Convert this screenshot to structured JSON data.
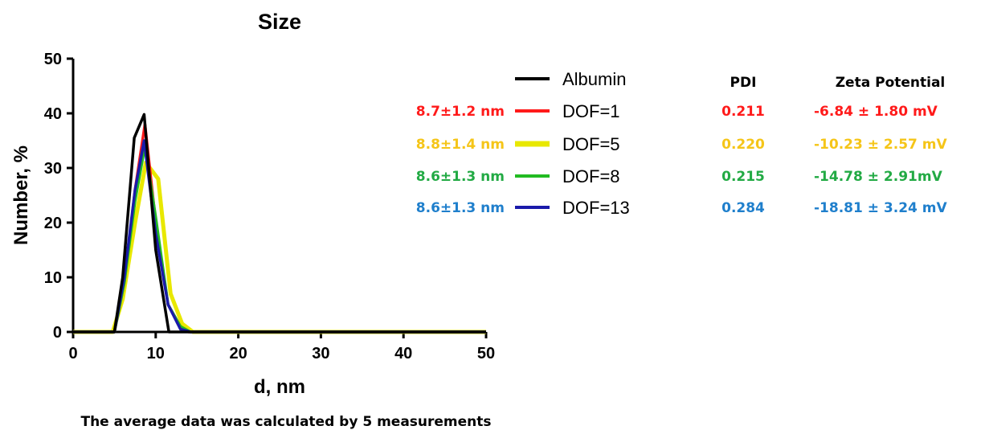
{
  "chart_data": {
    "type": "line",
    "title": "Size",
    "xlabel": "d, nm",
    "ylabel": "Number, %",
    "xlim": [
      0,
      50
    ],
    "ylim": [
      0,
      50
    ],
    "xticks": [
      "0",
      "10",
      "20",
      "30",
      "40",
      "50"
    ],
    "yticks": [
      "0",
      "10",
      "20",
      "30",
      "40",
      "50"
    ],
    "grid": false,
    "legend_position": "right",
    "series": [
      {
        "name": "Albumin",
        "color": "#000000",
        "size_label": "",
        "pdi": "",
        "zeta": "",
        "x": [
          0,
          5,
          6,
          7.4,
          8.6,
          10,
          11.6,
          12,
          50
        ],
        "y": [
          0,
          0,
          10,
          35.5,
          39.8,
          15,
          0,
          0,
          0
        ]
      },
      {
        "name": "DOF=1",
        "color": "#ff1a1a",
        "size_label": "8.7±1.2 nm",
        "pdi": "0.211",
        "zeta": "-6.84 ± 1.80 mV",
        "x": [
          0,
          5,
          6.2,
          7.5,
          8.7,
          10,
          11.5,
          13,
          14,
          15.5,
          50
        ],
        "y": [
          0,
          0,
          9,
          26,
          38,
          20,
          5,
          1,
          0,
          0,
          0
        ]
      },
      {
        "name": "DOF=5",
        "color": "#e8e800",
        "size_label": "8.8±1.4 nm",
        "pdi": "0.220",
        "zeta": "-10.23 ± 2.57 mV",
        "x": [
          0,
          4.8,
          6,
          7.5,
          8.8,
          10.3,
          11.8,
          13.2,
          14.5,
          16,
          50
        ],
        "y": [
          0,
          0,
          6,
          20,
          31,
          28,
          7,
          1.5,
          0,
          0,
          0
        ]
      },
      {
        "name": "DOF=8",
        "color": "#22bb22",
        "size_label": "8.6±1.3 nm",
        "pdi": "0.215",
        "zeta": "-14.78 ± 2.91mV",
        "x": [
          0,
          5,
          6.2,
          7.5,
          8.7,
          10,
          11.5,
          13,
          14.2,
          15.5,
          50
        ],
        "y": [
          0,
          0,
          9,
          24,
          34,
          21,
          5,
          1,
          0,
          0,
          0
        ]
      },
      {
        "name": "DOF=13",
        "color": "#1a1aaa",
        "size_label": "8.6±1.3 nm",
        "pdi": "0.284",
        "zeta": "-18.81 ± 3.24 mV",
        "x": [
          0,
          5,
          6.2,
          7.5,
          8.6,
          10,
          11.5,
          13,
          14.2,
          15.5,
          50
        ],
        "y": [
          0,
          0,
          10,
          26,
          35,
          18,
          5,
          0.5,
          0,
          0,
          0
        ]
      }
    ]
  },
  "label_colors": [
    "#ff1a1a",
    "#f5c518",
    "#22aa44",
    "#1f7fcc"
  ],
  "table": {
    "pdi_header": "PDI",
    "zeta_header": "Zeta Potential"
  },
  "footnote": "The average data was calculated by 5 measurements"
}
